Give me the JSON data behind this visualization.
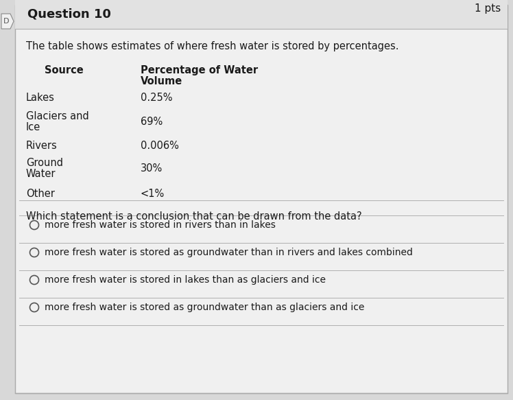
{
  "title": "Question 10",
  "pts": "1 pts",
  "intro": "The table shows estimates of where fresh water is stored by percentages.",
  "col1_header": "Source",
  "col2_header_line1": "Percentage of Water",
  "col2_header_line2": "Volume",
  "table_rows": [
    {
      "source_line1": "Lakes",
      "source_line2": "",
      "value": "0.25%"
    },
    {
      "source_line1": "Glaciers and",
      "source_line2": "Ice",
      "value": "69%"
    },
    {
      "source_line1": "Rivers",
      "source_line2": "",
      "value": "0.006%"
    },
    {
      "source_line1": "Ground",
      "source_line2": "Water",
      "value": "30%"
    },
    {
      "source_line1": "Other",
      "source_line2": "",
      "value": "<1%"
    }
  ],
  "question": "Which statement is a conclusion that can be drawn from the data?",
  "options": [
    "more fresh water is stored in rivers than in lakes",
    "more fresh water is stored as groundwater than in rivers and lakes combined",
    "more fresh water is stored in lakes than as glaciers and ice",
    "more fresh water is stored as groundwater than as glaciers and ice"
  ],
  "bg_color": "#d8d8d8",
  "card_color": "#f0f0f0",
  "text_color": "#1a1a1a",
  "header_bar_color": "#e2e2e2",
  "line_color": "#b0b0b0",
  "left_tag_color": "#888888"
}
